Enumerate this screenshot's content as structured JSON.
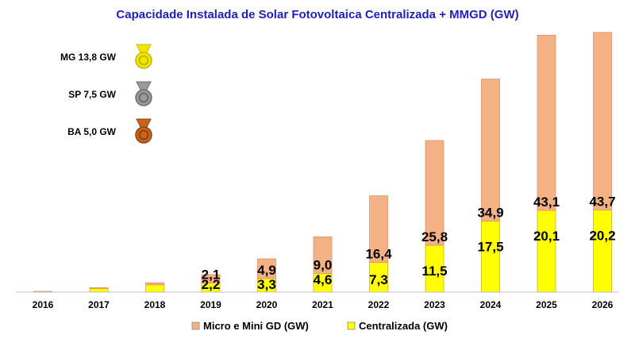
{
  "chart_data": {
    "type": "bar",
    "stacked": true,
    "title": "Capacidade Instalada de Solar Fotovoltaica Centralizada + MMGD (GW)",
    "xlabel": "",
    "ylabel": "",
    "ylim": [
      0,
      66
    ],
    "grid": false,
    "legend_position": "bottom",
    "categories": [
      "2016",
      "2017",
      "2018",
      "2019",
      "2020",
      "2021",
      "2022",
      "2023",
      "2024",
      "2025",
      "2026"
    ],
    "series": [
      {
        "name": "Centralizada (GW)",
        "color": "#ffff00",
        "values": [
          0.1,
          0.9,
          1.8,
          2.2,
          3.3,
          4.6,
          7.3,
          11.5,
          17.5,
          20.1,
          20.2
        ],
        "labels": [
          "",
          "",
          "",
          "2,2",
          "3,3",
          "4,6",
          "7,3",
          "11,5",
          "17,5",
          "20,1",
          "20,2"
        ]
      },
      {
        "name": "Micro e Mini GD (GW)",
        "color": "#f4b183",
        "values": [
          0.1,
          0.2,
          0.5,
          2.1,
          4.9,
          9.0,
          16.4,
          25.8,
          34.9,
          43.1,
          43.7
        ],
        "labels": [
          "",
          "",
          "",
          "2,1",
          "4,9",
          "9,0",
          "16,4",
          "25,8",
          "34,9",
          "43,1",
          "43,7"
        ]
      }
    ],
    "legend": [
      {
        "label": "Micro e Mini GD (GW)",
        "color": "#f4b183"
      },
      {
        "label": "Centralizada (GW)",
        "color": "#ffff00"
      }
    ]
  },
  "medals": [
    {
      "label": "MG 13,8 GW",
      "color": "#f2e600",
      "ring": "#c9b800",
      "icon": "gold-medal-icon"
    },
    {
      "label": "SP 7,5 GW",
      "color": "#9a9a9a",
      "ring": "#6e6e6e",
      "icon": "silver-medal-icon"
    },
    {
      "label": "BA 5,0 GW",
      "color": "#c8651b",
      "ring": "#8e4410",
      "icon": "bronze-medal-icon"
    }
  ]
}
